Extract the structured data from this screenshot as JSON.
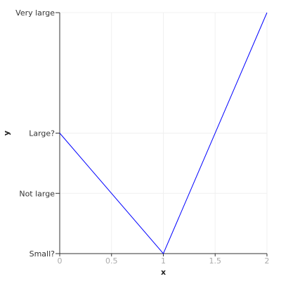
{
  "chart_data": {
    "type": "line",
    "title": "",
    "xlabel": "x",
    "ylabel": "y",
    "xlim": [
      0,
      2
    ],
    "ylim": [
      0,
      4
    ],
    "x_ticks": [
      {
        "value": 0,
        "label": "0"
      },
      {
        "value": 0.5,
        "label": "0.5"
      },
      {
        "value": 1,
        "label": "1"
      },
      {
        "value": 1.5,
        "label": "1.5"
      },
      {
        "value": 2,
        "label": "2"
      }
    ],
    "y_ticks": [
      {
        "value": 0,
        "label": "Small?"
      },
      {
        "value": 1,
        "label": "Not large"
      },
      {
        "value": 2,
        "label": "Large?"
      },
      {
        "value": 4,
        "label": "Very large"
      }
    ],
    "grid": true,
    "series": [
      {
        "color": "#0000ff",
        "x": [
          0,
          1,
          2
        ],
        "y": [
          2,
          0,
          4
        ]
      }
    ]
  }
}
